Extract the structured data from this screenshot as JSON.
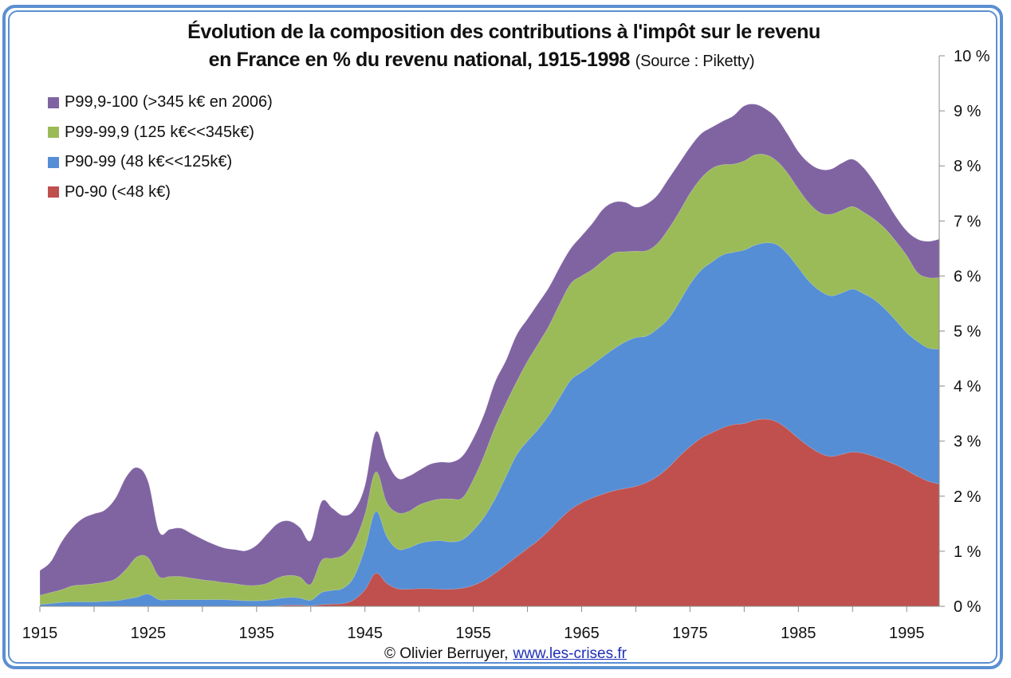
{
  "chart_data": {
    "type": "area",
    "stacked": true,
    "title": "Évolution de la composition des contributions à l'impôt sur le revenu en France en % du revenu national, 1915-1998",
    "title_line1": "Évolution de la composition des contributions à l'impôt sur le revenu",
    "title_line2": "en France en % du revenu national, 1915-1998",
    "subtitle": "(Source : Piketty)",
    "xlabel": "",
    "ylabel": "",
    "xlim": [
      1915,
      1998
    ],
    "ylim": [
      0,
      10
    ],
    "y_axis_side": "right",
    "grid": false,
    "legend_position": "top-left",
    "x_ticks": [
      "1915",
      "1925",
      "1935",
      "1945",
      "1955",
      "1965",
      "1975",
      "1985",
      "1995"
    ],
    "y_ticks": [
      "0 %",
      "1 %",
      "2 %",
      "3 %",
      "4 %",
      "5 %",
      "6 %",
      "7 %",
      "8 %",
      "9 %",
      "10 %"
    ],
    "x": [
      1915,
      1916,
      1917,
      1918,
      1919,
      1920,
      1921,
      1922,
      1923,
      1924,
      1925,
      1926,
      1927,
      1928,
      1929,
      1930,
      1931,
      1932,
      1933,
      1934,
      1935,
      1936,
      1937,
      1938,
      1939,
      1940,
      1941,
      1942,
      1943,
      1944,
      1945,
      1946,
      1947,
      1948,
      1949,
      1950,
      1951,
      1952,
      1953,
      1954,
      1955,
      1956,
      1957,
      1958,
      1959,
      1960,
      1961,
      1962,
      1963,
      1964,
      1965,
      1966,
      1967,
      1968,
      1969,
      1970,
      1971,
      1972,
      1973,
      1974,
      1975,
      1976,
      1977,
      1978,
      1979,
      1980,
      1981,
      1982,
      1983,
      1984,
      1985,
      1986,
      1987,
      1988,
      1989,
      1990,
      1991,
      1992,
      1993,
      1994,
      1995,
      1996,
      1997,
      1998
    ],
    "series": [
      {
        "name": "P0-90 (<48 k€)",
        "color": "#c0504d",
        "values": [
          0.0,
          0.0,
          0.0,
          0.0,
          0.0,
          0.0,
          0.0,
          0.0,
          0.0,
          0.0,
          0.0,
          0.0,
          0.0,
          0.0,
          0.0,
          0.0,
          0.0,
          0.0,
          0.0,
          0.0,
          0.0,
          0.0,
          0.01,
          0.02,
          0.02,
          0.01,
          0.03,
          0.04,
          0.05,
          0.12,
          0.3,
          0.6,
          0.42,
          0.32,
          0.31,
          0.32,
          0.32,
          0.31,
          0.31,
          0.33,
          0.38,
          0.47,
          0.6,
          0.75,
          0.9,
          1.05,
          1.2,
          1.38,
          1.58,
          1.76,
          1.88,
          1.97,
          2.04,
          2.1,
          2.14,
          2.18,
          2.25,
          2.36,
          2.52,
          2.72,
          2.9,
          3.05,
          3.15,
          3.24,
          3.3,
          3.32,
          3.38,
          3.4,
          3.35,
          3.22,
          3.05,
          2.9,
          2.78,
          2.72,
          2.76,
          2.8,
          2.78,
          2.72,
          2.65,
          2.57,
          2.47,
          2.36,
          2.27,
          2.22
        ]
      },
      {
        "name": "P90-99 (48 k€<<125k€)",
        "color": "#558ed5",
        "values": [
          0.03,
          0.05,
          0.07,
          0.08,
          0.08,
          0.08,
          0.09,
          0.1,
          0.13,
          0.17,
          0.22,
          0.12,
          0.12,
          0.12,
          0.12,
          0.12,
          0.12,
          0.12,
          0.11,
          0.1,
          0.1,
          0.11,
          0.13,
          0.14,
          0.13,
          0.1,
          0.22,
          0.25,
          0.28,
          0.42,
          0.75,
          1.12,
          0.85,
          0.72,
          0.75,
          0.82,
          0.86,
          0.88,
          0.86,
          0.88,
          1.0,
          1.15,
          1.35,
          1.6,
          1.85,
          1.95,
          2.02,
          2.1,
          2.22,
          2.35,
          2.37,
          2.42,
          2.5,
          2.58,
          2.66,
          2.7,
          2.66,
          2.68,
          2.7,
          2.8,
          2.95,
          3.05,
          3.1,
          3.14,
          3.13,
          3.15,
          3.18,
          3.2,
          3.22,
          3.18,
          3.1,
          3.0,
          2.95,
          2.92,
          2.93,
          2.96,
          2.9,
          2.85,
          2.75,
          2.62,
          2.5,
          2.45,
          2.42,
          2.45
        ]
      },
      {
        "name": "P99-99,9 (125 k€<<345k€)",
        "color": "#9bbb59",
        "values": [
          0.17,
          0.2,
          0.23,
          0.29,
          0.31,
          0.33,
          0.35,
          0.4,
          0.55,
          0.73,
          0.66,
          0.42,
          0.42,
          0.42,
          0.39,
          0.36,
          0.34,
          0.31,
          0.3,
          0.28,
          0.28,
          0.31,
          0.38,
          0.4,
          0.38,
          0.29,
          0.58,
          0.58,
          0.6,
          0.62,
          0.62,
          0.72,
          0.62,
          0.66,
          0.66,
          0.7,
          0.73,
          0.76,
          0.78,
          0.76,
          0.92,
          1.12,
          1.3,
          1.33,
          1.33,
          1.45,
          1.55,
          1.62,
          1.7,
          1.75,
          1.75,
          1.73,
          1.74,
          1.74,
          1.64,
          1.57,
          1.55,
          1.55,
          1.63,
          1.64,
          1.65,
          1.67,
          1.7,
          1.64,
          1.6,
          1.62,
          1.64,
          1.6,
          1.52,
          1.47,
          1.43,
          1.42,
          1.42,
          1.48,
          1.5,
          1.5,
          1.48,
          1.46,
          1.46,
          1.44,
          1.4,
          1.25,
          1.28,
          1.3
        ]
      },
      {
        "name": "P99,9-100 (>345 k€ en 2006)",
        "color": "#8064a2",
        "values": [
          0.45,
          0.56,
          0.87,
          1.06,
          1.21,
          1.27,
          1.31,
          1.47,
          1.68,
          1.62,
          1.38,
          0.82,
          0.86,
          0.88,
          0.81,
          0.74,
          0.67,
          0.63,
          0.62,
          0.63,
          0.73,
          0.9,
          0.99,
          0.99,
          0.9,
          0.8,
          1.07,
          0.91,
          0.72,
          0.59,
          0.52,
          0.73,
          0.76,
          0.63,
          0.64,
          0.63,
          0.67,
          0.67,
          0.67,
          0.76,
          0.75,
          0.75,
          0.82,
          0.78,
          0.85,
          0.77,
          0.74,
          0.7,
          0.67,
          0.64,
          0.73,
          0.84,
          0.94,
          0.92,
          0.9,
          0.8,
          0.85,
          0.88,
          0.91,
          0.89,
          0.84,
          0.81,
          0.75,
          0.79,
          0.88,
          1.0,
          0.92,
          0.83,
          0.78,
          0.71,
          0.68,
          0.73,
          0.79,
          0.82,
          0.86,
          0.86,
          0.81,
          0.68,
          0.54,
          0.45,
          0.45,
          0.61,
          0.66,
          0.7
        ]
      }
    ]
  },
  "legend_order": [
    3,
    2,
    1,
    0
  ],
  "footer": {
    "credit": "© Olivier Berruyer,",
    "link_text": "www.les-crises.fr"
  },
  "frame_color": "#5b8fd2"
}
